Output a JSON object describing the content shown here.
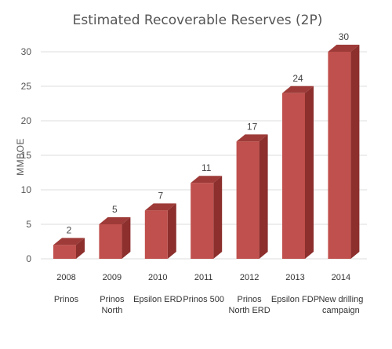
{
  "chart_data": {
    "type": "bar",
    "title": "Estimated Recoverable Reserves (2P)",
    "ylabel": "MMBOE",
    "xlabel": "",
    "ylim": [
      0,
      30
    ],
    "yticks": [
      0,
      5,
      10,
      15,
      20,
      25,
      30
    ],
    "grid": true,
    "style": "3d-column",
    "colors": {
      "front": "#c0504d",
      "side": "#8c2f2d",
      "top": "#9e3b38"
    },
    "categories": [
      {
        "year": "2008",
        "name": [
          "Prinos"
        ]
      },
      {
        "year": "2009",
        "name": [
          "Prinos",
          "North"
        ]
      },
      {
        "year": "2010",
        "name": [
          "Epsilon ERD"
        ]
      },
      {
        "year": "2011",
        "name": [
          "Prinos 500"
        ]
      },
      {
        "year": "2012",
        "name": [
          "Prinos",
          "North ERD"
        ]
      },
      {
        "year": "2013",
        "name": [
          "Epsilon FDP"
        ]
      },
      {
        "year": "2014",
        "name": [
          "New drilling",
          "campaign"
        ]
      }
    ],
    "values": [
      2,
      5,
      7,
      11,
      17,
      24,
      30
    ],
    "data_labels": [
      "2",
      "5",
      "7",
      "11",
      "17",
      "24",
      "30"
    ]
  }
}
